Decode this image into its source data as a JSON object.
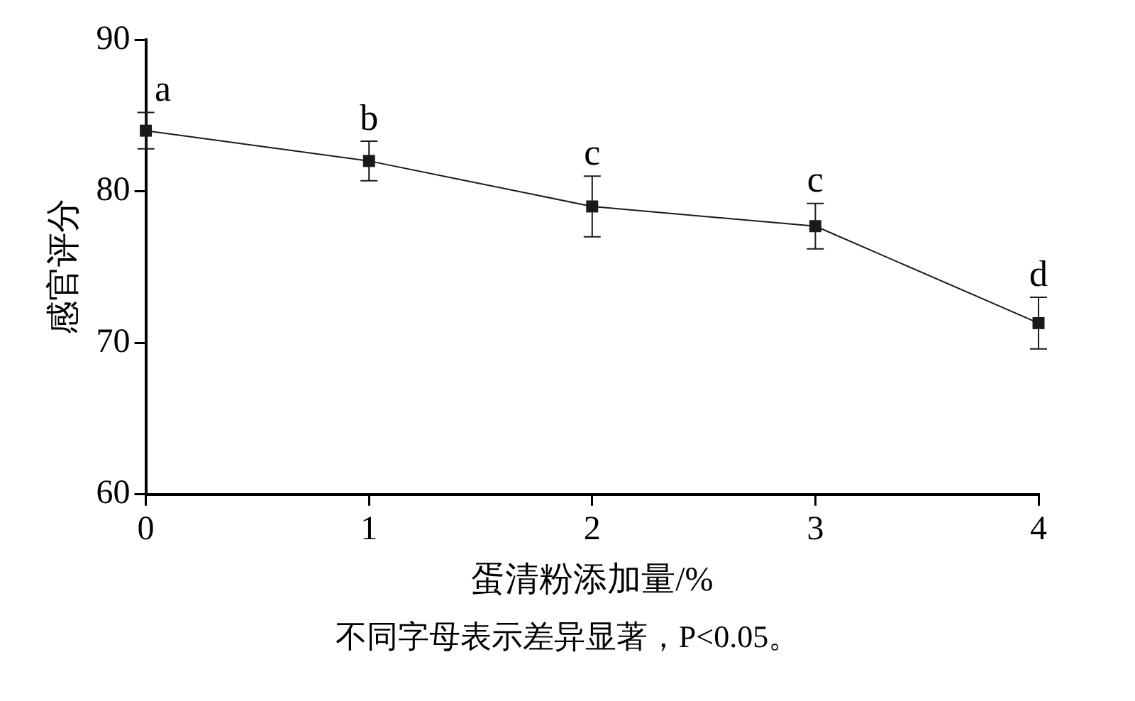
{
  "chart_data": {
    "type": "line",
    "xlabel": "蛋清粉添加量/%",
    "ylabel": "感官评分",
    "x": [
      0,
      1,
      2,
      3,
      4
    ],
    "series": [
      {
        "color": "#1a1a1a",
        "values": [
          84.0,
          82.0,
          79.0,
          77.7,
          71.3
        ],
        "errors": [
          1.2,
          1.3,
          2.0,
          1.5,
          1.7
        ]
      }
    ],
    "xlim": [
      0,
      4
    ],
    "xticks": [
      0,
      1,
      2,
      3,
      4
    ],
    "ylim": [
      60,
      90
    ],
    "yticks": [
      60,
      70,
      80,
      90
    ],
    "grid": false,
    "legend": false,
    "marker": "square",
    "line_style": "solid",
    "annotations": [
      {
        "text": "a",
        "x": 0,
        "y": 84.0
      },
      {
        "text": "b",
        "x": 1,
        "y": 82.0
      },
      {
        "text": "c",
        "x": 2,
        "y": 79.0
      },
      {
        "text": "c",
        "x": 3,
        "y": 77.7
      },
      {
        "text": "d",
        "x": 4,
        "y": 71.3
      },
      "不同字母表示差异显著，P<0.05。"
    ]
  }
}
